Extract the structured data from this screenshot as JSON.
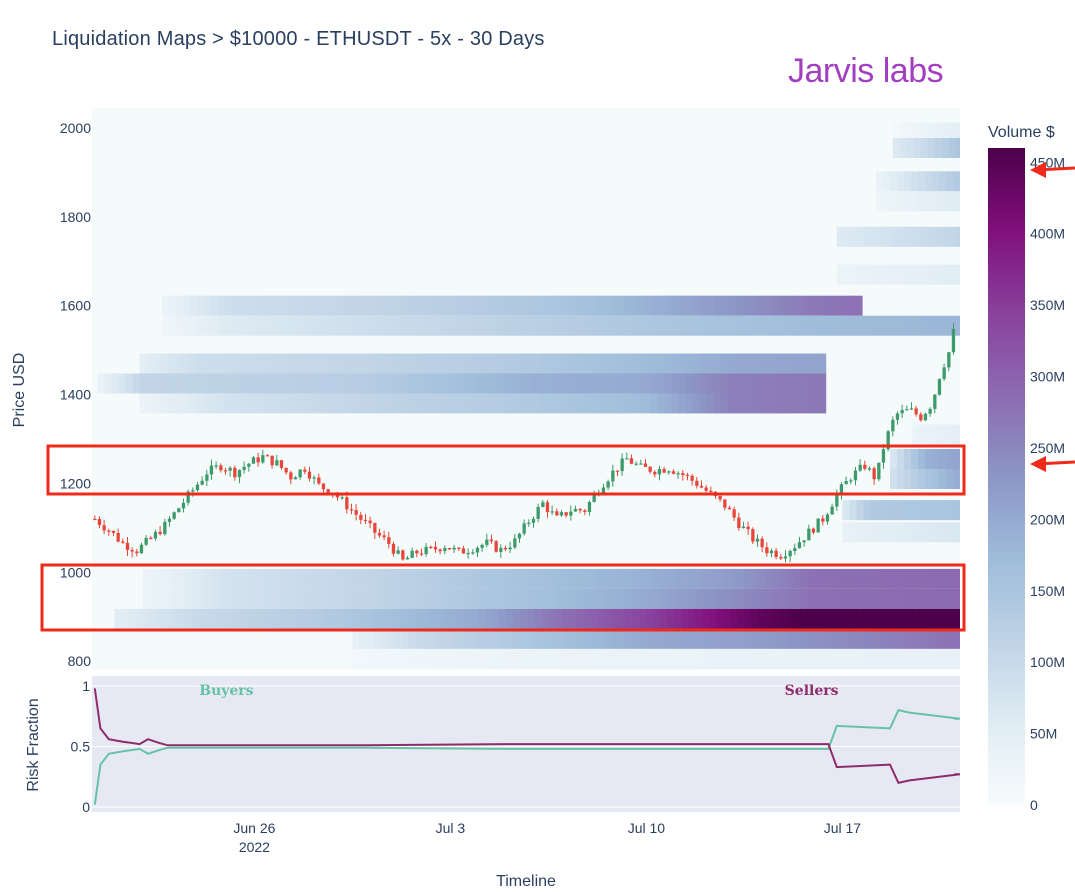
{
  "title": "Liquidation Maps > $10000 - ETHUSDT - 5x - 30 Days",
  "brand": "Jarvis labs",
  "colors": {
    "up_candle": "#3d9a6a",
    "down_candle": "#e8463a",
    "buyers_line": "#66c2a5",
    "sellers_line": "#8e2c6b",
    "highlight_box": "#ee2a1b",
    "arrow": "#ee2a1b",
    "heatmap_bg": "#f5fafb",
    "risk_bg": "#e6e9f4"
  },
  "chart_data": [
    {
      "type": "heatmap",
      "title": "Liquidation Maps > $10000 - ETHUSDT - 5x - 30 Days",
      "ylabel": "Price USD",
      "xlabel": "Timeline",
      "y_ticks": [
        800,
        1000,
        1200,
        1400,
        1600,
        1800,
        2000
      ],
      "ylim": [
        780,
        2045
      ],
      "x_ticks": [
        {
          "label": "Jun 26",
          "sub": "2022",
          "day": 26
        },
        {
          "label": "Jul 3",
          "day": 33
        },
        {
          "label": "Jul 10",
          "day": 40
        },
        {
          "label": "Jul 17",
          "day": 47
        }
      ],
      "xlim": [
        20.2,
        51.2
      ],
      "colorbar": {
        "title": "Volume $",
        "ticks": [
          "0",
          "50M",
          "100M",
          "150M",
          "200M",
          "250M",
          "300M",
          "350M",
          "400M",
          "450M"
        ],
        "max": 460,
        "stops": [
          "#f7fcfd",
          "#e0ecf4",
          "#bfd3e6",
          "#9ebcda",
          "#8c96c6",
          "#8c6bb1",
          "#88419d",
          "#810f7c",
          "#4d004b"
        ]
      },
      "bands": [
        {
          "price": 1990,
          "start": 48.8,
          "levels": [
            [
              48.8,
              10
            ],
            [
              50.5,
              40
            ],
            [
              51.2,
              50
            ]
          ]
        },
        {
          "price": 1955,
          "start": 48.8,
          "levels": [
            [
              48.8,
              60
            ],
            [
              50.0,
              100
            ],
            [
              51.2,
              150
            ]
          ]
        },
        {
          "price": 1880,
          "start": 48.2,
          "levels": [
            [
              48.2,
              30
            ],
            [
              49.5,
              80
            ],
            [
              51.2,
              140
            ]
          ]
        },
        {
          "price": 1835,
          "start": 48.2,
          "levels": [
            [
              48.2,
              25
            ],
            [
              51.2,
              60
            ]
          ]
        },
        {
          "price": 1755,
          "start": 46.8,
          "levels": [
            [
              46.8,
              60
            ],
            [
              51.2,
              110
            ]
          ]
        },
        {
          "price": 1670,
          "start": 46.8,
          "levels": [
            [
              46.8,
              30
            ],
            [
              51.2,
              55
            ]
          ]
        },
        {
          "price": 1600,
          "start": 22.7,
          "levels": [
            [
              22.7,
              30
            ],
            [
              25,
              90
            ],
            [
              30,
              110
            ],
            [
              37,
              150
            ],
            [
              41,
              200
            ],
            [
              46,
              270
            ],
            [
              47.5,
              280
            ]
          ]
        },
        {
          "price": 1555,
          "start": 22.7,
          "levels": [
            [
              22.7,
              20
            ],
            [
              25,
              60
            ],
            [
              30,
              90
            ],
            [
              37,
              130
            ],
            [
              41,
              150
            ],
            [
              46,
              170
            ],
            [
              51.2,
              180
            ]
          ]
        },
        {
          "price": 1470,
          "start": 21.9,
          "levels": [
            [
              21.9,
              50
            ],
            [
              24,
              90
            ],
            [
              30,
              110
            ],
            [
              36,
              140
            ],
            [
              40,
              170
            ],
            [
              43,
              200
            ],
            [
              46.2,
              210
            ]
          ]
        },
        {
          "price": 1425,
          "start": 20.4,
          "levels": [
            [
              20.4,
              30
            ],
            [
              22,
              110
            ],
            [
              30,
              130
            ],
            [
              36,
              190
            ],
            [
              40,
              200
            ],
            [
              43,
              260
            ],
            [
              46.2,
              270
            ]
          ]
        },
        {
          "price": 1380,
          "start": 21.9,
          "levels": [
            [
              21.9,
              30
            ],
            [
              25,
              80
            ],
            [
              30,
              110
            ],
            [
              36,
              140
            ],
            [
              40,
              170
            ],
            [
              43,
              260
            ],
            [
              46.2,
              270
            ]
          ]
        },
        {
          "price": 1310,
          "start": 49.5,
          "levels": [
            [
              49.5,
              30
            ],
            [
              51.2,
              50
            ]
          ]
        },
        {
          "price": 1255,
          "start": 48.7,
          "levels": [
            [
              48.7,
              60
            ],
            [
              50.0,
              190
            ],
            [
              51.2,
              210
            ]
          ]
        },
        {
          "price": 1210,
          "start": 48.7,
          "levels": [
            [
              48.7,
              80
            ],
            [
              50.0,
              150
            ],
            [
              51.2,
              200
            ]
          ]
        },
        {
          "price": 1140,
          "start": 47.0,
          "levels": [
            [
              47.0,
              60
            ],
            [
              48.0,
              140
            ],
            [
              51.2,
              150
            ]
          ]
        },
        {
          "price": 1090,
          "start": 47.0,
          "levels": [
            [
              47.0,
              40
            ],
            [
              51.2,
              70
            ]
          ]
        },
        {
          "price": 985,
          "start": 22.0,
          "levels": [
            [
              22.0,
              25
            ],
            [
              25,
              80
            ],
            [
              30,
              110
            ],
            [
              36,
              160
            ],
            [
              40,
              190
            ],
            [
              43,
              220
            ],
            [
              44.5,
              250
            ],
            [
              46,
              280
            ],
            [
              51.2,
              290
            ]
          ]
        },
        {
          "price": 940,
          "start": 22.0,
          "levels": [
            [
              22.0,
              25
            ],
            [
              25,
              80
            ],
            [
              30,
              110
            ],
            [
              36,
              160
            ],
            [
              40,
              200
            ],
            [
              43,
              240
            ],
            [
              46,
              280
            ],
            [
              51.2,
              290
            ]
          ]
        },
        {
          "price": 895,
          "start": 21.0,
          "levels": [
            [
              21.0,
              50
            ],
            [
              24,
              100
            ],
            [
              29,
              140
            ],
            [
              34,
              200
            ],
            [
              37,
              280
            ],
            [
              40,
              340
            ],
            [
              42,
              390
            ],
            [
              44,
              440
            ],
            [
              45.5,
              460
            ],
            [
              51.2,
              460
            ]
          ]
        },
        {
          "price": 850,
          "start": 29.5,
          "levels": [
            [
              29.5,
              40
            ],
            [
              32,
              100
            ],
            [
              36,
              150
            ],
            [
              40,
              200
            ],
            [
              44,
              220
            ],
            [
              51.2,
              280
            ]
          ]
        },
        {
          "price": 805,
          "start": 29.5,
          "levels": [
            [
              29.5,
              15
            ],
            [
              36,
              30
            ],
            [
              51.2,
              40
            ]
          ]
        }
      ],
      "candles_path": [
        [
          20.3,
          1120
        ],
        [
          20.8,
          1095
        ],
        [
          21.3,
          1065
        ],
        [
          21.8,
          1050
        ],
        [
          22.3,
          1075
        ],
        [
          22.8,
          1105
        ],
        [
          23.3,
          1145
        ],
        [
          23.8,
          1185
        ],
        [
          24.3,
          1225
        ],
        [
          24.8,
          1240
        ],
        [
          25.3,
          1225
        ],
        [
          25.8,
          1245
        ],
        [
          26.3,
          1260
        ],
        [
          26.8,
          1245
        ],
        [
          27.3,
          1215
        ],
        [
          27.8,
          1235
        ],
        [
          28.3,
          1195
        ],
        [
          28.8,
          1180
        ],
        [
          29.3,
          1150
        ],
        [
          29.8,
          1120
        ],
        [
          30.3,
          1090
        ],
        [
          30.8,
          1065
        ],
        [
          31.3,
          1025
        ],
        [
          31.8,
          1045
        ],
        [
          32.3,
          1050
        ],
        [
          32.8,
          1060
        ],
        [
          33.3,
          1045
        ],
        [
          33.8,
          1055
        ],
        [
          34.3,
          1065
        ],
        [
          34.8,
          1050
        ],
        [
          35.3,
          1070
        ],
        [
          35.8,
          1115
        ],
        [
          36.3,
          1155
        ],
        [
          36.8,
          1120
        ],
        [
          37.3,
          1140
        ],
        [
          37.8,
          1140
        ],
        [
          38.3,
          1190
        ],
        [
          38.8,
          1225
        ],
        [
          39.3,
          1255
        ],
        [
          39.8,
          1235
        ],
        [
          40.3,
          1230
        ],
        [
          40.8,
          1235
        ],
        [
          41.3,
          1220
        ],
        [
          41.8,
          1200
        ],
        [
          42.3,
          1175
        ],
        [
          42.8,
          1150
        ],
        [
          43.3,
          1110
        ],
        [
          43.8,
          1075
        ],
        [
          44.3,
          1050
        ],
        [
          44.8,
          1040
        ],
        [
          45.3,
          1060
        ],
        [
          45.8,
          1090
        ],
        [
          46.3,
          1120
        ],
        [
          46.8,
          1175
        ],
        [
          47.3,
          1215
        ],
        [
          47.8,
          1240
        ],
        [
          48.2,
          1210
        ],
        [
          48.5,
          1290
        ],
        [
          48.9,
          1355
        ],
        [
          49.4,
          1365
        ],
        [
          49.8,
          1350
        ],
        [
          50.2,
          1380
        ],
        [
          50.5,
          1450
        ],
        [
          50.9,
          1510
        ],
        [
          51.0,
          1555
        ]
      ],
      "candles_seed": 7
    },
    {
      "type": "line",
      "ylabel": "Risk Fraction",
      "y_ticks": [
        0,
        0.5,
        1
      ],
      "ylim": [
        0,
        1
      ],
      "annotations": [
        {
          "text": "Buyers",
          "day": 25.0
        },
        {
          "text": "Sellers",
          "day": 45.9
        }
      ],
      "series": [
        {
          "name": "Buyers",
          "x": [
            20.3,
            20.5,
            20.8,
            21.3,
            21.9,
            22.2,
            22.6,
            22.9,
            23.3,
            30,
            35,
            40,
            46.5,
            46.8,
            48.7,
            49.0,
            49.4,
            51.2,
            51.0
          ],
          "y": [
            0.02,
            0.35,
            0.44,
            0.46,
            0.48,
            0.44,
            0.47,
            0.49,
            0.49,
            0.49,
            0.48,
            0.48,
            0.48,
            0.67,
            0.65,
            0.8,
            0.78,
            0.73,
            0.73
          ]
        },
        {
          "name": "Sellers",
          "x": [
            20.3,
            20.5,
            20.8,
            21.3,
            21.9,
            22.2,
            22.6,
            22.9,
            23.3,
            30,
            35,
            40,
            46.5,
            46.8,
            48.7,
            49.0,
            49.4,
            51.2,
            51.0
          ],
          "y": [
            0.98,
            0.65,
            0.56,
            0.54,
            0.52,
            0.56,
            0.53,
            0.51,
            0.51,
            0.51,
            0.52,
            0.52,
            0.52,
            0.33,
            0.35,
            0.2,
            0.22,
            0.27,
            0.27
          ]
        }
      ]
    }
  ]
}
